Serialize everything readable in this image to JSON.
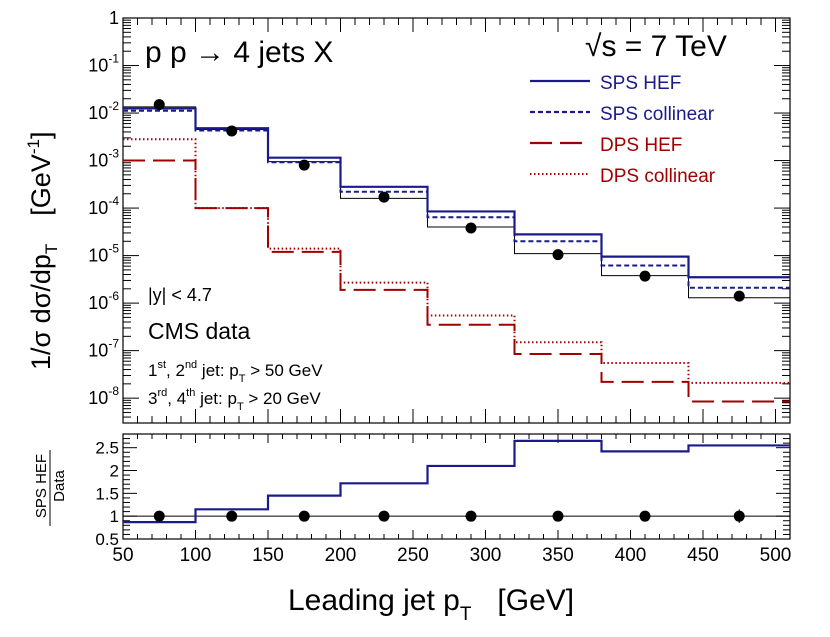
{
  "chart_data": {
    "type": "step",
    "x_edges": [
      50,
      100,
      150,
      200,
      260,
      320,
      380,
      440,
      510
    ],
    "xlabel_main": "Leading jet p",
    "xlabel_sub": "T",
    "xlabel_unit": "[GeV]",
    "xlim": [
      50,
      510
    ],
    "x_ticks": [
      "50",
      "100",
      "150",
      "200",
      "250",
      "300",
      "350",
      "400",
      "450",
      "500"
    ],
    "upper": {
      "title_process": "p p → 4 jets X",
      "title_energy": "√s = 7 TeV",
      "ylabel_prefix": "1/σ  dσ/dp",
      "ylabel_sub": "T",
      "ylabel_unit": "[GeV",
      "ylabel_unit_exp": "-1",
      "ylabel_unit_close": "]",
      "yscale": "log",
      "ylim": [
        3e-09,
        1
      ],
      "y_tick_labels": [
        {
          "base": "10",
          "exp": "-8"
        },
        {
          "base": "10",
          "exp": "-7"
        },
        {
          "base": "10",
          "exp": "-6"
        },
        {
          "base": "10",
          "exp": "-5"
        },
        {
          "base": "10",
          "exp": "-4"
        },
        {
          "base": "10",
          "exp": "-3"
        },
        {
          "base": "10",
          "exp": "-2"
        },
        {
          "base": "10",
          "exp": "-1"
        },
        {
          "base": "1",
          "exp": ""
        }
      ],
      "series": [
        {
          "name": "SPS HEF",
          "color": "#1a1a8c",
          "style": "solid",
          "values": [
            0.0125,
            0.0048,
            0.00115,
            0.00028,
            8.5e-05,
            2.8e-05,
            9.5e-06,
            3.5e-06
          ]
        },
        {
          "name": "SPS collinear",
          "color": "#1a1a8c",
          "style": "short-dash",
          "values": [
            0.0112,
            0.0043,
            0.00092,
            0.00022,
            6.4e-05,
            2e-05,
            6.2e-06,
            2.1e-06
          ]
        },
        {
          "name": "DPS HEF",
          "color": "#a00000",
          "style": "long-dash",
          "values": [
            0.001,
            0.0001,
            1.2e-05,
            1.9e-06,
            3.5e-07,
            8.5e-08,
            2.2e-08,
            8.5e-09
          ]
        },
        {
          "name": "DPS collinear",
          "color": "#a00000",
          "style": "dotted",
          "values": [
            0.0028,
            0.0001,
            1.4e-05,
            2.7e-06,
            5.5e-07,
            1.5e-07,
            5.5e-08,
            2.1e-08
          ]
        }
      ],
      "data": {
        "name": "CMS data",
        "x": [
          75,
          125,
          175,
          230,
          290,
          350,
          410,
          475
        ],
        "y": [
          0.015,
          0.0042,
          0.0008,
          0.00017,
          3.8e-05,
          1.05e-05,
          3.7e-06,
          1.4e-06
        ],
        "mc_line": [
          0.0135,
          0.0045,
          0.00095,
          0.00016,
          4e-05,
          1.1e-05,
          3.8e-06,
          1.3e-06
        ]
      },
      "annotations": {
        "rapidity": "|y| < 4.7",
        "data_label": "CMS data",
        "cut1_a": "1",
        "cut1_a_sup": "st",
        "cut1_b": ", 2",
        "cut1_b_sup": "nd",
        "cut1_c": " jet: p",
        "cut1_sub": "T",
        "cut1_d": " > 50 GeV",
        "cut2_a": "3",
        "cut2_a_sup": "rd",
        "cut2_b": ", 4",
        "cut2_b_sup": "th",
        "cut2_c": " jet: p",
        "cut2_sub": "T",
        "cut2_d": " > 20 GeV"
      }
    },
    "lower": {
      "ylabel_num": "SPS HEF",
      "ylabel_den": "Data",
      "ylim": [
        0.5,
        2.8
      ],
      "y_ticks": [
        "0.5",
        "1",
        "1.5",
        "2",
        "2.5"
      ],
      "ratio_values": [
        0.87,
        1.15,
        1.45,
        1.72,
        2.1,
        2.65,
        2.42,
        2.55
      ],
      "ratio_color": "#1a1a8c",
      "data_points": [
        1,
        1,
        1,
        1,
        1,
        1,
        1,
        1
      ],
      "data_errors": [
        0.03,
        0.03,
        0.03,
        0.03,
        0.04,
        0.05,
        0.1,
        0.15
      ]
    }
  }
}
